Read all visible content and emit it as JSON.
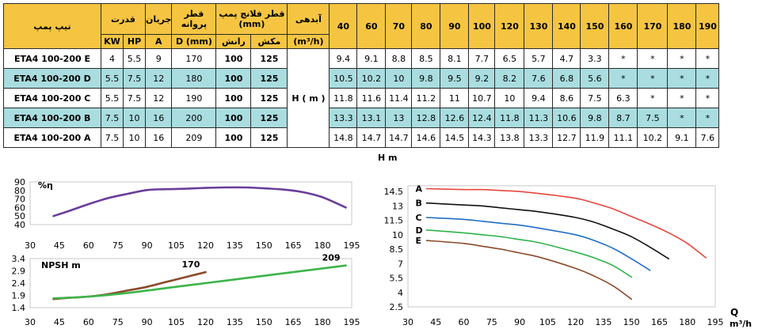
{
  "table": {
    "headers": {
      "pump_type": "تیپ پمپ",
      "power": "قدرت",
      "current": "جریان",
      "impeller": "قطر پروانه",
      "flange": "قطر فلانچ پمپ (mm)",
      "flow": "آبدهی",
      "power_kw": "KW",
      "power_hp": "HP",
      "current_a": "A",
      "impeller_d": "D (mm)",
      "flange_discharge": "رانش",
      "flange_suction": "مکش",
      "flow_unit": "(m³/h)",
      "head_label": "H ( m )"
    },
    "flows": [
      "40",
      "60",
      "70",
      "80",
      "90",
      "100",
      "120",
      "130",
      "140",
      "150",
      "160",
      "170",
      "180",
      "190"
    ],
    "rows": [
      {
        "model": "ETA4 100-200 E",
        "kw": "4",
        "hp": "5.5",
        "a": "9",
        "d": "170",
        "discharge": "100",
        "suction": "125",
        "heads": [
          "9.4",
          "9.1",
          "8.8",
          "8.5",
          "8.1",
          "7.7",
          "6.5",
          "5.7",
          "4.7",
          "3.3",
          "*",
          "*",
          "*",
          "*"
        ]
      },
      {
        "model": "ETA4 100-200 D",
        "kw": "5.5",
        "hp": "7.5",
        "a": "12",
        "d": "180",
        "discharge": "100",
        "suction": "125",
        "heads": [
          "10.5",
          "10.2",
          "10",
          "9.8",
          "9.5",
          "9.2",
          "8.2",
          "7.6",
          "6.8",
          "5.6",
          "*",
          "*",
          "*",
          "*"
        ]
      },
      {
        "model": "ETA4 100-200 C",
        "kw": "5.5",
        "hp": "7.5",
        "a": "12",
        "d": "190",
        "discharge": "100",
        "suction": "125",
        "heads": [
          "11.8",
          "11.6",
          "11.4",
          "11.2",
          "11",
          "10.7",
          "10",
          "9.4",
          "8.6",
          "7.5",
          "6.3",
          "*",
          "*",
          "*"
        ]
      },
      {
        "model": "ETA4 100-200 B",
        "kw": "7.5",
        "hp": "10",
        "a": "16",
        "d": "200",
        "discharge": "100",
        "suction": "125",
        "heads": [
          "13.3",
          "13.1",
          "13",
          "12.8",
          "12.6",
          "12.4",
          "11.8",
          "11.3",
          "10.6",
          "9.8",
          "8.7",
          "7.5",
          "*",
          "*"
        ]
      },
      {
        "model": "ETA4 100-200 A",
        "kw": "7.5",
        "hp": "10",
        "a": "16",
        "d": "209",
        "discharge": "100",
        "suction": "125",
        "heads": [
          "14.8",
          "14.7",
          "14.7",
          "14.6",
          "14.5",
          "14.3",
          "13.8",
          "13.3",
          "12.7",
          "11.9",
          "11.1",
          "10.2",
          "9.1",
          "7.6"
        ]
      }
    ]
  },
  "chart_data": [
    {
      "type": "line",
      "ylabel": "%η",
      "x_ticks": [
        30,
        45,
        60,
        75,
        90,
        105,
        120,
        135,
        150,
        165,
        180,
        195
      ],
      "y_ticks": [
        40,
        50,
        60,
        70,
        80,
        90
      ],
      "xlim": [
        30,
        195
      ],
      "ylim": [
        40,
        90
      ],
      "color": "#6a3d9a",
      "x": [
        42,
        50,
        60,
        70,
        80,
        90,
        100,
        110,
        120,
        130,
        140,
        150,
        160,
        170,
        180,
        192
      ],
      "y": [
        50,
        56,
        64,
        71,
        76,
        80.5,
        81.5,
        82,
        83,
        83.5,
        83.5,
        82.5,
        81,
        78,
        72,
        60
      ]
    },
    {
      "type": "line",
      "ylabel": "NPSH m",
      "x_ticks": [
        30,
        45,
        60,
        75,
        90,
        105,
        120,
        135,
        150,
        165,
        180,
        195
      ],
      "y_ticks": [
        "1.4",
        "1.9",
        "2.4",
        "2.9",
        "3.4"
      ],
      "xlim": [
        30,
        195
      ],
      "ylim": [
        1.4,
        3.4
      ],
      "series": [
        {
          "name": "170",
          "color": "#8b4a2a",
          "x": [
            42,
            50,
            60,
            70,
            80,
            90,
            100,
            110,
            120
          ],
          "y": [
            1.75,
            1.8,
            1.85,
            1.95,
            2.1,
            2.25,
            2.45,
            2.65,
            2.85
          ]
        },
        {
          "name": "209",
          "color": "#3cb44b",
          "x": [
            42,
            60,
            80,
            100,
            120,
            140,
            160,
            180,
            192
          ],
          "y": [
            1.78,
            1.85,
            2.0,
            2.2,
            2.4,
            2.6,
            2.8,
            3.0,
            3.12
          ]
        }
      ]
    },
    {
      "type": "line",
      "ylabel": "H m",
      "xlabel": "Q",
      "xunit": "m³/h",
      "x_ticks": [
        30,
        45,
        60,
        75,
        90,
        105,
        120,
        135,
        150,
        165,
        180,
        195
      ],
      "y_ticks": [
        "2.5",
        "4",
        "5.5",
        "7",
        "8.5",
        "10",
        "11.5",
        "13",
        "14.5"
      ],
      "xlim": [
        30,
        195
      ],
      "ylim": [
        2.5,
        15.5
      ],
      "series": [
        {
          "name": "A",
          "color": "#e8473d",
          "x": [
            40,
            60,
            70,
            80,
            90,
            100,
            120,
            130,
            140,
            150,
            160,
            170,
            180,
            190
          ],
          "y": [
            14.8,
            14.7,
            14.7,
            14.6,
            14.5,
            14.3,
            13.8,
            13.3,
            12.7,
            11.9,
            11.1,
            10.2,
            9.1,
            7.6
          ]
        },
        {
          "name": "B",
          "color": "#111111",
          "x": [
            40,
            60,
            70,
            80,
            90,
            100,
            120,
            130,
            140,
            150,
            160,
            170
          ],
          "y": [
            13.3,
            13.1,
            13,
            12.8,
            12.6,
            12.4,
            11.8,
            11.3,
            10.6,
            9.8,
            8.7,
            7.5
          ]
        },
        {
          "name": "C",
          "color": "#1f6fc5",
          "x": [
            40,
            60,
            70,
            80,
            90,
            100,
            120,
            130,
            140,
            150,
            160
          ],
          "y": [
            11.8,
            11.6,
            11.4,
            11.2,
            11,
            10.7,
            10,
            9.4,
            8.6,
            7.5,
            6.3
          ]
        },
        {
          "name": "D",
          "color": "#2eb34a",
          "x": [
            40,
            60,
            70,
            80,
            90,
            100,
            120,
            130,
            140,
            150
          ],
          "y": [
            10.5,
            10.2,
            10,
            9.8,
            9.5,
            9.2,
            8.2,
            7.6,
            6.8,
            5.6
          ]
        },
        {
          "name": "E",
          "color": "#8b4a2a",
          "x": [
            40,
            60,
            70,
            80,
            90,
            100,
            120,
            130,
            140,
            150
          ],
          "y": [
            9.4,
            9.1,
            8.8,
            8.5,
            8.1,
            7.7,
            6.5,
            5.7,
            4.7,
            3.3
          ]
        }
      ]
    }
  ]
}
